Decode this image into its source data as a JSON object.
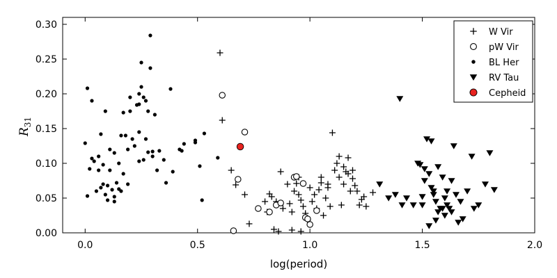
{
  "chart_data": {
    "type": "scatter",
    "xlabel": "log(period)",
    "ylabel": "R",
    "ylabel_subscript": "31",
    "xlim": [
      -0.1,
      2.0
    ],
    "ylim": [
      0.0,
      0.31
    ],
    "xticks": [
      0.0,
      0.5,
      1.0,
      1.5,
      2.0
    ],
    "xtick_labels": [
      "0.0",
      "0.5",
      "1.0",
      "1.5",
      "2.0"
    ],
    "yticks": [
      0.0,
      0.05,
      0.1,
      0.15,
      0.2,
      0.25,
      0.3
    ],
    "ytick_labels": [
      "0.00",
      "0.05",
      "0.10",
      "0.15",
      "0.20",
      "0.25",
      "0.30"
    ],
    "grid": false,
    "legend_position": "top-right",
    "series": [
      {
        "name": "W Vir",
        "marker": "plus",
        "color": "#000000",
        "points": [
          [
            0.6,
            0.259
          ],
          [
            0.61,
            0.162
          ],
          [
            0.65,
            0.09
          ],
          [
            0.67,
            0.069
          ],
          [
            0.71,
            0.055
          ],
          [
            0.73,
            0.013
          ],
          [
            0.77,
            0.035
          ],
          [
            0.8,
            0.045
          ],
          [
            0.81,
            0.03
          ],
          [
            0.82,
            0.056
          ],
          [
            0.83,
            0.052
          ],
          [
            0.84,
            0.005
          ],
          [
            0.85,
            0.045
          ],
          [
            0.86,
            0.002
          ],
          [
            0.87,
            0.088
          ],
          [
            0.88,
            0.035
          ],
          [
            0.9,
            0.07
          ],
          [
            0.91,
            0.042
          ],
          [
            0.92,
            0.03
          ],
          [
            0.93,
            0.06
          ],
          [
            0.94,
            0.071
          ],
          [
            0.95,
            0.055
          ],
          [
            0.96,
            0.047
          ],
          [
            0.97,
            0.038
          ],
          [
            0.98,
            0.028
          ],
          [
            0.99,
            0.018
          ],
          [
            1.0,
            0.065
          ],
          [
            1.01,
            0.045
          ],
          [
            1.02,
            0.055
          ],
          [
            1.03,
            0.035
          ],
          [
            1.04,
            0.062
          ],
          [
            1.05,
            0.072
          ],
          [
            1.06,
            0.025
          ],
          [
            1.07,
            0.05
          ],
          [
            1.08,
            0.065
          ],
          [
            1.09,
            0.038
          ],
          [
            1.1,
            0.144
          ],
          [
            1.11,
            0.09
          ],
          [
            1.12,
            0.1
          ],
          [
            1.13,
            0.08
          ],
          [
            1.14,
            0.04
          ],
          [
            1.15,
            0.07
          ],
          [
            1.16,
            0.088
          ],
          [
            1.17,
            0.108
          ],
          [
            1.18,
            0.06
          ],
          [
            1.19,
            0.078
          ],
          [
            1.2,
            0.068
          ],
          [
            1.21,
            0.06
          ],
          [
            1.22,
            0.04
          ],
          [
            1.23,
            0.048
          ],
          [
            1.24,
            0.052
          ],
          [
            1.25,
            0.038
          ],
          [
            1.28,
            0.058
          ],
          [
            1.13,
            0.11
          ],
          [
            1.15,
            0.095
          ],
          [
            1.17,
            0.085
          ],
          [
            1.19,
            0.09
          ],
          [
            1.05,
            0.08
          ],
          [
            1.08,
            0.07
          ],
          [
            0.95,
            0.08
          ],
          [
            0.92,
            0.004
          ],
          [
            0.96,
            0.002
          ]
        ]
      },
      {
        "name": "pW Vir",
        "marker": "circle-open",
        "color": "#000000",
        "points": [
          [
            0.61,
            0.198
          ],
          [
            0.71,
            0.145
          ],
          [
            0.68,
            0.077
          ],
          [
            0.66,
            0.003
          ],
          [
            0.77,
            0.035
          ],
          [
            0.82,
            0.03
          ],
          [
            0.85,
            0.04
          ],
          [
            0.87,
            0.043
          ],
          [
            0.93,
            0.08
          ],
          [
            0.94,
            0.081
          ],
          [
            0.97,
            0.071
          ],
          [
            0.98,
            0.022
          ],
          [
            0.99,
            0.02
          ],
          [
            1.0,
            0.012
          ],
          [
            1.03,
            0.032
          ]
        ]
      },
      {
        "name": "BL Her",
        "marker": "dot",
        "color": "#000000",
        "points": [
          [
            0.0,
            0.129
          ],
          [
            0.01,
            0.053
          ],
          [
            0.01,
            0.208
          ],
          [
            0.02,
            0.092
          ],
          [
            0.03,
            0.107
          ],
          [
            0.03,
            0.19
          ],
          [
            0.04,
            0.103
          ],
          [
            0.05,
            0.06
          ],
          [
            0.06,
            0.11
          ],
          [
            0.07,
            0.142
          ],
          [
            0.07,
            0.065
          ],
          [
            0.08,
            0.07
          ],
          [
            0.08,
            0.098
          ],
          [
            0.09,
            0.175
          ],
          [
            0.09,
            0.055
          ],
          [
            0.1,
            0.068
          ],
          [
            0.1,
            0.047
          ],
          [
            0.11,
            0.12
          ],
          [
            0.11,
            0.09
          ],
          [
            0.12,
            0.062
          ],
          [
            0.13,
            0.115
          ],
          [
            0.13,
            0.052
          ],
          [
            0.14,
            0.072
          ],
          [
            0.15,
            0.063
          ],
          [
            0.15,
            0.1
          ],
          [
            0.16,
            0.06
          ],
          [
            0.17,
            0.173
          ],
          [
            0.17,
            0.085
          ],
          [
            0.18,
            0.14
          ],
          [
            0.19,
            0.12
          ],
          [
            0.19,
            0.07
          ],
          [
            0.2,
            0.175
          ],
          [
            0.2,
            0.195
          ],
          [
            0.21,
            0.135
          ],
          [
            0.22,
            0.125
          ],
          [
            0.23,
            0.184
          ],
          [
            0.24,
            0.185
          ],
          [
            0.24,
            0.2
          ],
          [
            0.24,
            0.145
          ],
          [
            0.25,
            0.21
          ],
          [
            0.25,
            0.245
          ],
          [
            0.26,
            0.195
          ],
          [
            0.26,
            0.105
          ],
          [
            0.27,
            0.19
          ],
          [
            0.27,
            0.135
          ],
          [
            0.28,
            0.116
          ],
          [
            0.28,
            0.175
          ],
          [
            0.29,
            0.284
          ],
          [
            0.29,
            0.237
          ],
          [
            0.3,
            0.117
          ],
          [
            0.3,
            0.11
          ],
          [
            0.31,
            0.17
          ],
          [
            0.32,
            0.09
          ],
          [
            0.33,
            0.118
          ],
          [
            0.35,
            0.105
          ],
          [
            0.36,
            0.072
          ],
          [
            0.38,
            0.207
          ],
          [
            0.39,
            0.088
          ],
          [
            0.42,
            0.12
          ],
          [
            0.43,
            0.118
          ],
          [
            0.44,
            0.128
          ],
          [
            0.49,
            0.133
          ],
          [
            0.49,
            0.13
          ],
          [
            0.51,
            0.096
          ],
          [
            0.52,
            0.047
          ],
          [
            0.53,
            0.143
          ],
          [
            0.59,
            0.108
          ],
          [
            0.24,
            0.103
          ],
          [
            0.13,
            0.045
          ],
          [
            0.06,
            0.09
          ],
          [
            0.16,
            0.14
          ]
        ]
      },
      {
        "name": "RV Tau",
        "marker": "triangle-down",
        "color": "#000000",
        "points": [
          [
            1.31,
            0.07
          ],
          [
            1.35,
            0.05
          ],
          [
            1.38,
            0.055
          ],
          [
            1.4,
            0.193
          ],
          [
            1.41,
            0.04
          ],
          [
            1.43,
            0.05
          ],
          [
            1.46,
            0.04
          ],
          [
            1.48,
            0.1
          ],
          [
            1.49,
            0.098
          ],
          [
            1.5,
            0.052
          ],
          [
            1.5,
            0.04
          ],
          [
            1.51,
            0.075
          ],
          [
            1.51,
            0.092
          ],
          [
            1.52,
            0.135
          ],
          [
            1.53,
            0.085
          ],
          [
            1.53,
            0.01
          ],
          [
            1.54,
            0.132
          ],
          [
            1.54,
            0.065
          ],
          [
            1.55,
            0.06
          ],
          [
            1.55,
            0.055
          ],
          [
            1.56,
            0.045
          ],
          [
            1.56,
            0.018
          ],
          [
            1.57,
            0.03
          ],
          [
            1.58,
            0.035
          ],
          [
            1.59,
            0.035
          ],
          [
            1.6,
            0.05
          ],
          [
            1.6,
            0.025
          ],
          [
            1.61,
            0.04
          ],
          [
            1.62,
            0.035
          ],
          [
            1.63,
            0.03
          ],
          [
            1.63,
            0.075
          ],
          [
            1.64,
            0.125
          ],
          [
            1.65,
            0.055
          ],
          [
            1.66,
            0.015
          ],
          [
            1.67,
            0.045
          ],
          [
            1.68,
            0.02
          ],
          [
            1.7,
            0.06
          ],
          [
            1.72,
            0.11
          ],
          [
            1.73,
            0.035
          ],
          [
            1.75,
            0.04
          ],
          [
            1.78,
            0.07
          ],
          [
            1.8,
            0.115
          ],
          [
            1.82,
            0.062
          ],
          [
            1.57,
            0.095
          ],
          [
            1.59,
            0.08
          ],
          [
            1.61,
            0.06
          ]
        ]
      },
      {
        "name": "Cepheid",
        "marker": "circle-filled",
        "color": "#e8231f",
        "points": [
          [
            0.69,
            0.124
          ]
        ]
      }
    ]
  }
}
